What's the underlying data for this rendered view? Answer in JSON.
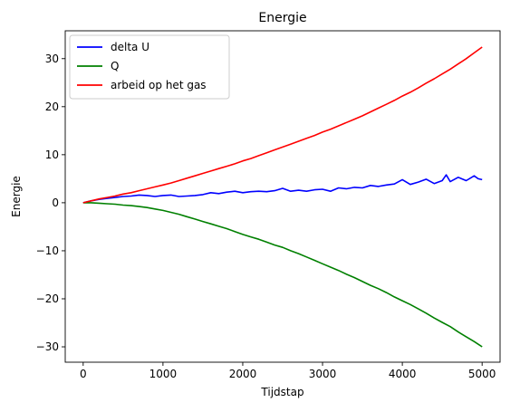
{
  "chart_data": {
    "type": "line",
    "title": "Energie",
    "xlabel": "Tijdstap",
    "ylabel": "Energie",
    "xlim": [
      -225,
      5225
    ],
    "ylim": [
      -33.2,
      35.8
    ],
    "xticks": [
      0,
      1000,
      2000,
      3000,
      4000,
      5000
    ],
    "yticks": [
      -30,
      -20,
      -10,
      0,
      10,
      20,
      30
    ],
    "grid": false,
    "legend_position": "upper-left",
    "series": [
      {
        "name": "delta U",
        "color": "#0000ff",
        "x": [
          0,
          100,
          200,
          300,
          400,
          500,
          600,
          700,
          800,
          900,
          1000,
          1100,
          1200,
          1300,
          1400,
          1500,
          1600,
          1700,
          1800,
          1900,
          2000,
          2100,
          2200,
          2300,
          2400,
          2500,
          2600,
          2700,
          2800,
          2900,
          3000,
          3100,
          3200,
          3300,
          3400,
          3500,
          3600,
          3700,
          3800,
          3900,
          4000,
          4100,
          4200,
          4300,
          4400,
          4500,
          4550,
          4600,
          4700,
          4800,
          4900,
          4950,
          5000
        ],
        "y": [
          0.0,
          0.4,
          0.7,
          0.9,
          1.1,
          1.3,
          1.4,
          1.6,
          1.5,
          1.3,
          1.5,
          1.6,
          1.3,
          1.4,
          1.5,
          1.7,
          2.1,
          1.9,
          2.2,
          2.4,
          2.1,
          2.3,
          2.4,
          2.3,
          2.5,
          3.0,
          2.4,
          2.6,
          2.4,
          2.7,
          2.8,
          2.4,
          3.1,
          2.9,
          3.2,
          3.1,
          3.6,
          3.4,
          3.7,
          3.9,
          4.8,
          3.8,
          4.3,
          4.9,
          4.0,
          4.6,
          5.8,
          4.4,
          5.3,
          4.6,
          5.6,
          5.0,
          4.8
        ]
      },
      {
        "name": "Q",
        "color": "#008000",
        "x": [
          0,
          100,
          200,
          300,
          400,
          500,
          600,
          700,
          800,
          900,
          1000,
          1100,
          1200,
          1300,
          1400,
          1500,
          1600,
          1700,
          1800,
          1900,
          2000,
          2100,
          2200,
          2300,
          2400,
          2500,
          2600,
          2700,
          2800,
          2900,
          3000,
          3100,
          3200,
          3300,
          3400,
          3500,
          3600,
          3700,
          3800,
          3900,
          4000,
          4100,
          4200,
          4300,
          4400,
          4500,
          4600,
          4700,
          4800,
          4900,
          5000
        ],
        "y": [
          0.0,
          0.0,
          -0.1,
          -0.2,
          -0.3,
          -0.5,
          -0.6,
          -0.8,
          -1.0,
          -1.3,
          -1.6,
          -2.0,
          -2.4,
          -2.9,
          -3.4,
          -3.9,
          -4.4,
          -4.9,
          -5.4,
          -6.0,
          -6.6,
          -7.1,
          -7.6,
          -8.2,
          -8.8,
          -9.3,
          -10.0,
          -10.6,
          -11.3,
          -12.0,
          -12.7,
          -13.4,
          -14.1,
          -14.9,
          -15.6,
          -16.4,
          -17.2,
          -17.9,
          -18.7,
          -19.6,
          -20.4,
          -21.2,
          -22.1,
          -23.0,
          -24.0,
          -24.9,
          -25.8,
          -26.9,
          -27.9,
          -28.9,
          -30.0
        ]
      },
      {
        "name": "arbeid op het gas",
        "color": "#ff0000",
        "x": [
          0,
          100,
          200,
          300,
          400,
          500,
          600,
          700,
          800,
          900,
          1000,
          1100,
          1200,
          1300,
          1400,
          1500,
          1600,
          1700,
          1800,
          1900,
          2000,
          2100,
          2200,
          2300,
          2400,
          2500,
          2600,
          2700,
          2800,
          2900,
          3000,
          3100,
          3200,
          3300,
          3400,
          3500,
          3600,
          3700,
          3800,
          3900,
          4000,
          4100,
          4200,
          4300,
          4400,
          4500,
          4600,
          4700,
          4800,
          4900,
          5000
        ],
        "y": [
          0.0,
          0.4,
          0.8,
          1.1,
          1.4,
          1.8,
          2.1,
          2.5,
          2.9,
          3.3,
          3.7,
          4.1,
          4.6,
          5.1,
          5.6,
          6.1,
          6.6,
          7.1,
          7.6,
          8.1,
          8.7,
          9.2,
          9.8,
          10.4,
          11.0,
          11.6,
          12.2,
          12.8,
          13.4,
          14.0,
          14.7,
          15.3,
          16.0,
          16.7,
          17.4,
          18.1,
          18.9,
          19.7,
          20.5,
          21.3,
          22.2,
          23.0,
          23.9,
          24.9,
          25.8,
          26.8,
          27.8,
          28.9,
          30.0,
          31.2,
          32.4
        ]
      }
    ]
  }
}
